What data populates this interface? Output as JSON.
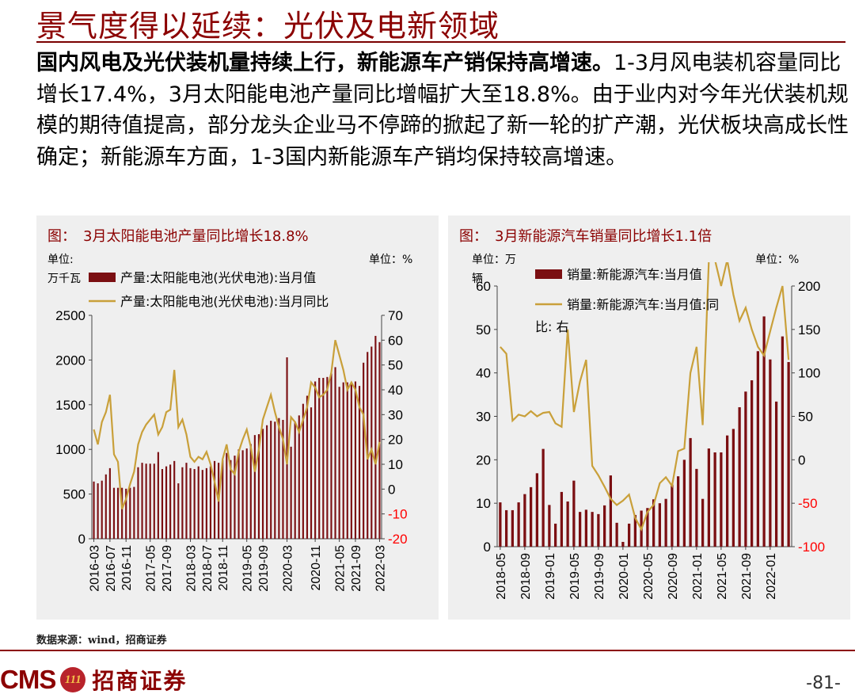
{
  "page": {
    "title": "景气度得以延续：光伏及电新领域",
    "summary_lead": "国内风电及光伏装机量持续上行，新能源车产销保持高增速。",
    "summary_rest": "1-3月风电装机容量同比增长17.4%，3月太阳能电池产量同比增幅扩大至18.8%。由于业内对今年光伏装机规模的期待值提高，部分龙头企业马不停蹄的掀起了新一轮的扩产潮，光伏板块高成长性确定；新能源车方面，1-3国内新能源车产销均保持较高增速。",
    "source": "数据来源：wind，招商证券",
    "logo_text": "CMS",
    "logo_mark": "111",
    "logo_cn": "招商证券",
    "page_number": "-81-"
  },
  "colors": {
    "bar": "#7b0f12",
    "line": "#c9a03a",
    "title_red": "#8b0000",
    "neg_red": "#ff0000"
  },
  "chart_data": [
    {
      "type": "bar+line",
      "title": "图：　3月太阳能电池产量同比增长18.8%",
      "left_unit_line1": "单位:",
      "left_unit_line2": "万千瓦",
      "right_unit": "单位：%",
      "legend": [
        "产量:太阳能电池(光伏电池):当月值",
        "产量:太阳能电池(光伏电池):当月同比"
      ],
      "left_ylim": [
        0,
        2500
      ],
      "left_ticks": [
        "0",
        "500",
        "1000",
        "1500",
        "2000",
        "2500"
      ],
      "right_ylim": [
        -20,
        70
      ],
      "right_ticks": [
        "-20",
        "-10",
        "0",
        "10",
        "20",
        "30",
        "40",
        "50",
        "60",
        "70"
      ],
      "x_tick_labels": [
        "2016-03",
        "2016-07",
        "2016-11",
        "2017-05",
        "2017-09",
        "2018-03",
        "2018-07",
        "2018-11",
        "2019-05",
        "2019-09",
        "2020-03",
        "2020-11",
        "2021-05",
        "2021-09",
        "2022-03"
      ],
      "x_tick_index": [
        0,
        4,
        8,
        14,
        18,
        24,
        28,
        32,
        38,
        42,
        48,
        55,
        61,
        65,
        71
      ],
      "bars": [
        640,
        620,
        650,
        720,
        790,
        570,
        570,
        570,
        560,
        570,
        580,
        800,
        850,
        840,
        840,
        840,
        970,
        780,
        810,
        830,
        870,
        620,
        800,
        850,
        790,
        780,
        810,
        770,
        790,
        810,
        870,
        850,
        880,
        960,
        880,
        930,
        1000,
        990,
        1010,
        1060,
        1160,
        1170,
        1230,
        1270,
        1320,
        1310,
        1350,
        1330,
        2030,
        1030,
        1310,
        1380,
        1510,
        1600,
        1470,
        1760,
        1800,
        1800,
        1810,
        1850,
        1920,
        1700,
        1750,
        1750,
        1750,
        1760,
        1710,
        1970,
        2090,
        2150,
        2270,
        2200
      ],
      "line": [
        24,
        18,
        27,
        31,
        38,
        14,
        11,
        -8,
        -4,
        2,
        7,
        18,
        23,
        26,
        28,
        30,
        22,
        25,
        31,
        32,
        48,
        25,
        28,
        22,
        13,
        11,
        13,
        12,
        15,
        10,
        3,
        -5,
        12,
        18,
        8,
        6,
        15,
        20,
        24,
        17,
        7,
        16,
        28,
        33,
        38,
        31,
        25,
        20,
        10,
        29,
        27,
        23,
        28,
        33,
        43,
        41,
        37,
        38,
        40,
        47,
        60,
        54,
        48,
        40,
        43,
        40,
        33,
        30,
        12,
        16,
        10,
        19
      ]
    },
    {
      "type": "bar+line",
      "title": "图：　3月新能源汽车销量同比增长1.1倍",
      "left_unit_line1": "单位：万",
      "left_unit_line2": "辆",
      "right_unit": "单位：%",
      "legend": [
        "销量:新能源汽车:当月值",
        "销量:新能源汽车:当月值:同",
        "比: 右"
      ],
      "left_ylim": [
        0,
        60
      ],
      "left_ticks": [
        "0",
        "10",
        "20",
        "30",
        "40",
        "50",
        "60"
      ],
      "right_ylim": [
        -100,
        200
      ],
      "right_ticks": [
        "-100",
        "-50",
        "0",
        "50",
        "100",
        "150",
        "200"
      ],
      "x_tick_labels": [
        "2018-05",
        "2018-09",
        "2019-01",
        "2019-05",
        "2019-09",
        "2020-01",
        "2020-05",
        "2020-09",
        "2021-01",
        "2021-05",
        "2021-09",
        "2022-01"
      ],
      "x_tick_index": [
        0,
        4,
        8,
        12,
        16,
        20,
        24,
        28,
        32,
        36,
        40,
        44
      ],
      "bars": [
        10.2,
        8.4,
        8.4,
        10.2,
        12.1,
        13.7,
        16.9,
        22.5,
        9.6,
        5.3,
        12.6,
        10.4,
        15.2,
        8.0,
        8.5,
        8.0,
        7.5,
        9.5,
        16.4,
        5.5,
        1.1,
        5.3,
        7.3,
        8.3,
        8.9,
        10.9,
        10.0,
        11.0,
        14.3,
        16.2,
        20.0,
        25.0,
        17.9,
        11.0,
        22.6,
        21.7,
        21.7,
        25.6,
        27.1,
        32.1,
        35.7,
        38.3,
        45.0,
        53.0,
        43.1,
        33.4,
        48.4,
        42.5
      ],
      "line": [
        130,
        122,
        45,
        52,
        50,
        56,
        50,
        54,
        55,
        42,
        38,
        150,
        55,
        90,
        115,
        -7,
        -18,
        -31,
        -45,
        -52,
        -47,
        -40,
        -67,
        -80,
        -60,
        -52,
        -27,
        -20,
        -30,
        10,
        13,
        100,
        130,
        40,
        230,
        230,
        200,
        230,
        190,
        160,
        175,
        150,
        130,
        120,
        148,
        175,
        200,
        115
      ]
    }
  ]
}
